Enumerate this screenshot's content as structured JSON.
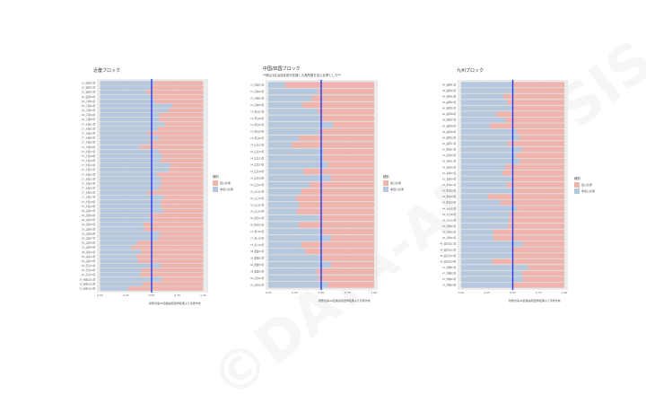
{
  "watermark": "©DATA-ANALYSIS.JP",
  "legend": {
    "title": "種別",
    "items": [
      "自公比率",
      "非自公比率"
    ]
  },
  "caption": "総務省第49回衆議院選挙結果より筆者作成",
  "colors": {
    "jiko": "#efb4ad",
    "hijiko": "#b5c8de",
    "midline": "#2a3bf0",
    "panel_bg": "#ebebeb"
  },
  "chart_data": [
    {
      "type": "bar",
      "stacked": true,
      "orientation": "horizontal",
      "title": "近畿ブロック",
      "subtitle": "",
      "xlim": [
        0,
        1
      ],
      "xticks": [
        "0.00",
        "0.25",
        "0.50",
        "0.75",
        "1.00"
      ],
      "reference_line": 0.5,
      "categories": [
        "25_滋賀01区",
        "25_滋賀02区",
        "25_滋賀03区",
        "25_滋賀04区",
        "26_京都01区",
        "26_京都02区",
        "26_京都03区",
        "26_京都04区",
        "26_京都05区",
        "27_大阪01区",
        "27_大阪02区",
        "27_大阪03区",
        "27_大阪04区",
        "27_大阪05区",
        "27_大阪06区",
        "27_大阪07区",
        "27_大阪08区",
        "27_大阪09区",
        "27_大阪10区",
        "27_大阪11区",
        "27_大阪12区",
        "27_大阪13区",
        "27_大阪14区",
        "27_大阪15区",
        "27_大阪16区",
        "27_大阪17区",
        "27_大阪18区",
        "27_大阪19区",
        "28_兵庫01区",
        "28_兵庫02区",
        "28_兵庫03区",
        "28_兵庫04区",
        "28_兵庫05区",
        "28_兵庫06区",
        "28_兵庫07区",
        "28_兵庫08区",
        "28_兵庫09区",
        "28_兵庫10区",
        "28_兵庫11区",
        "28_兵庫12区",
        "29_奈良01区",
        "29_奈良02区",
        "29_奈良03区",
        "30_和歌山01区",
        "30_和歌山02区",
        "30_和歌山03区"
      ],
      "series": [
        {
          "name": "非自公比率",
          "values": [
            0.52,
            0.5,
            0.45,
            0.51,
            0.53,
            0.7,
            0.66,
            0.57,
            0.57,
            0.63,
            0.56,
            0.46,
            0.57,
            0.48,
            0.39,
            0.57,
            0.6,
            0.59,
            0.68,
            0.67,
            0.55,
            0.59,
            0.59,
            0.57,
            0.46,
            0.61,
            0.59,
            0.59,
            0.61,
            0.48,
            0.52,
            0.42,
            0.43,
            0.58,
            0.56,
            0.36,
            0.3,
            0.4,
            0.35,
            0.37,
            0.59,
            0.4,
            0.39,
            0.6,
            0.41,
            0.27
          ]
        },
        {
          "name": "自公比率",
          "values": [
            0.48,
            0.5,
            0.55,
            0.49,
            0.47,
            0.3,
            0.34,
            0.43,
            0.43,
            0.37,
            0.44,
            0.54,
            0.43,
            0.52,
            0.61,
            0.43,
            0.4,
            0.41,
            0.32,
            0.33,
            0.45,
            0.41,
            0.41,
            0.43,
            0.54,
            0.39,
            0.41,
            0.41,
            0.39,
            0.52,
            0.48,
            0.58,
            0.57,
            0.42,
            0.44,
            0.64,
            0.7,
            0.6,
            0.65,
            0.63,
            0.41,
            0.6,
            0.61,
            0.4,
            0.59,
            0.73
          ]
        }
      ]
    },
    {
      "type": "bar",
      "stacked": true,
      "orientation": "horizontal",
      "title": "中国/四国ブロック",
      "subtitle": "**岡山3区は自民党が支援した無所属を自公比率とした**",
      "xlim": [
        0,
        1
      ],
      "xticks": [
        "0.00",
        "0.25",
        "0.50",
        "0.75",
        "1.00"
      ],
      "reference_line": 0.5,
      "categories": [
        "31_鳥取01区",
        "31_鳥取02区",
        "32_島根01区",
        "32_島根02区",
        "33_岡山01区",
        "33_岡山02区",
        "33_岡山03区",
        "33_岡山04区",
        "33_岡山05区",
        "34_広島01区",
        "34_広島02区",
        "34_広島03区",
        "34_広島04区",
        "34_広島05区",
        "34_広島06区",
        "34_広島07区",
        "35_山口01区",
        "35_山口02区",
        "35_山口03区",
        "35_山口04区",
        "36_徳島01区",
        "36_徳島02区",
        "37_香川01区",
        "37_香川02区",
        "37_香川03区",
        "38_愛媛01区",
        "38_愛媛02区",
        "38_愛媛03区",
        "38_愛媛04区",
        "39_高知01区",
        "39_高知02区"
      ],
      "series": [
        {
          "name": "非自公比率",
          "values": [
            0.16,
            0.47,
            0.41,
            0.32,
            0.47,
            0.49,
            0.61,
            0.48,
            0.29,
            0.22,
            0.52,
            0.52,
            0.56,
            0.33,
            0.59,
            0.39,
            0.31,
            0.26,
            0.29,
            0.27,
            0.48,
            0.29,
            0.5,
            0.59,
            0.31,
            0.35,
            0.51,
            0.59,
            0.46,
            0.47,
            0.56
          ]
        },
        {
          "name": "自公比率",
          "values": [
            0.84,
            0.53,
            0.59,
            0.68,
            0.53,
            0.51,
            0.39,
            0.52,
            0.71,
            0.78,
            0.48,
            0.48,
            0.44,
            0.67,
            0.41,
            0.61,
            0.69,
            0.74,
            0.71,
            0.73,
            0.52,
            0.71,
            0.5,
            0.41,
            0.69,
            0.65,
            0.49,
            0.41,
            0.54,
            0.53,
            0.44
          ]
        }
      ]
    },
    {
      "type": "bar",
      "stacked": true,
      "orientation": "horizontal",
      "title": "九州ブロック",
      "subtitle": "",
      "xlim": [
        0,
        1
      ],
      "xticks": [
        "0.00",
        "0.25",
        "0.50",
        "0.75",
        "1.00"
      ],
      "reference_line": 0.5,
      "categories": [
        "40_福岡01区",
        "40_福岡02区",
        "40_福岡03区",
        "40_福岡04区",
        "40_福岡05区",
        "40_福岡06区",
        "40_福岡07区",
        "40_福岡08区",
        "40_福岡09区",
        "40_福岡10区",
        "40_福岡11区",
        "41_佐賀01区",
        "41_佐賀02区",
        "42_長崎01区",
        "42_長崎02区",
        "42_長崎03区",
        "42_長崎04区",
        "43_熊本01区",
        "43_熊本02区",
        "43_熊本03区",
        "43_熊本04区",
        "44_大分01区",
        "44_大分02区",
        "44_大分03区",
        "45_宮崎01区",
        "45_宮崎02区",
        "45_宮崎03区",
        "46_鹿児島01区",
        "46_鹿児島02区",
        "46_鹿児島03区",
        "46_鹿児島04区",
        "47_沖縄01区",
        "47_沖縄02区",
        "47_沖縄03区",
        "47_沖縄04区"
      ],
      "series": [
        {
          "name": "非自公比率",
          "values": [
            0.5,
            0.52,
            0.41,
            0.45,
            0.5,
            0.34,
            0.43,
            0.28,
            0.54,
            0.56,
            0.45,
            0.59,
            0.53,
            0.57,
            0.43,
            0.4,
            0.49,
            0.44,
            0.52,
            0.26,
            0.38,
            0.54,
            0.47,
            0.46,
            0.45,
            0.31,
            0.31,
            0.6,
            0.49,
            0.5,
            0.3,
            0.65,
            0.59,
            0.6,
            0.5
          ]
        },
        {
          "name": "自公比率",
          "values": [
            0.5,
            0.48,
            0.59,
            0.55,
            0.5,
            0.66,
            0.57,
            0.72,
            0.46,
            0.44,
            0.55,
            0.41,
            0.47,
            0.43,
            0.57,
            0.6,
            0.51,
            0.56,
            0.48,
            0.74,
            0.62,
            0.46,
            0.53,
            0.54,
            0.55,
            0.69,
            0.69,
            0.4,
            0.51,
            0.5,
            0.7,
            0.35,
            0.41,
            0.4,
            0.5
          ]
        }
      ]
    }
  ]
}
